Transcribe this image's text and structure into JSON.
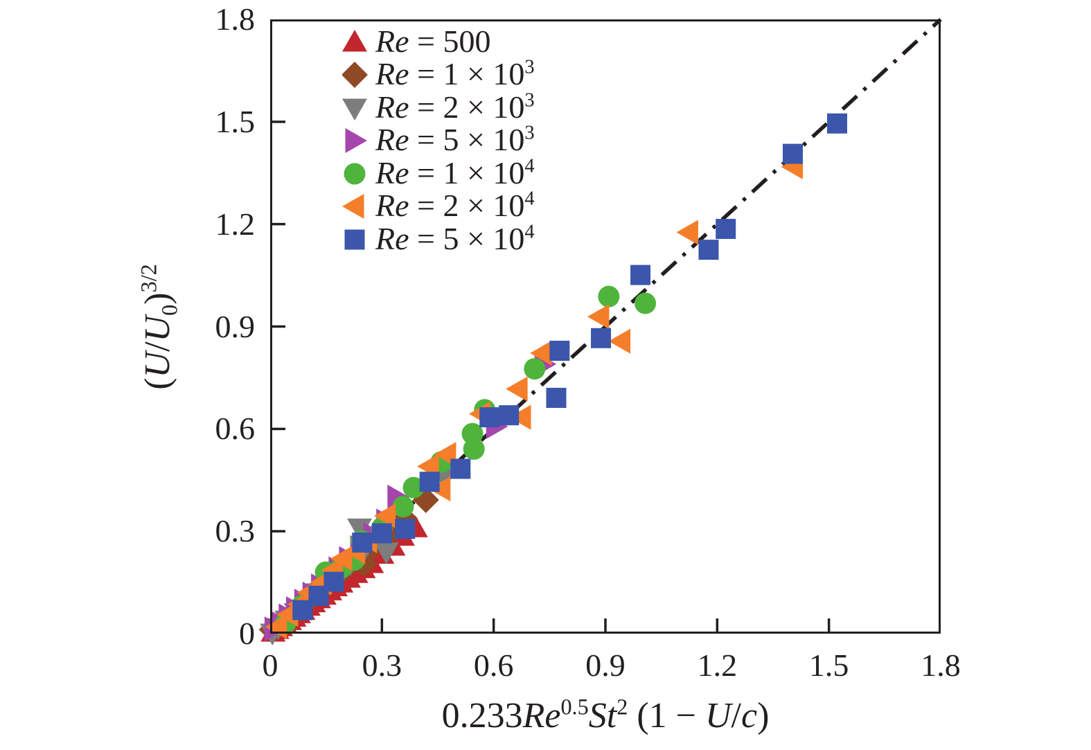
{
  "figure": {
    "background": "#ffffff",
    "frame_color": "#231f20"
  },
  "chart_data": {
    "type": "scatter",
    "title": "",
    "xlim": [
      0,
      1.8
    ],
    "ylim": [
      0,
      1.8
    ],
    "grid": false,
    "legend_position": "top-left-inside",
    "x_ticks": [
      0,
      0.3,
      0.6,
      0.9,
      1.2,
      1.5,
      1.8
    ],
    "x_tick_labels": [
      "0",
      "0.3",
      "0.6",
      "0.9",
      "1.2",
      "1.5",
      "1.8"
    ],
    "y_ticks": [
      0,
      0.3,
      0.6,
      0.9,
      1.2,
      1.5,
      1.8
    ],
    "y_tick_labels": [
      "0",
      "0.3",
      "0.6",
      "0.9",
      "1.2",
      "1.5",
      "1.8"
    ],
    "xlabel_segments": [
      {
        "t": "0.233"
      },
      {
        "t": "Re",
        "i": true
      },
      {
        "t": "0.5",
        "sup": true
      },
      {
        "t": "St",
        "i": true
      },
      {
        "t": "2",
        "sup": true
      },
      {
        "t": " (1 − "
      },
      {
        "t": "U",
        "i": true
      },
      {
        "t": "/"
      },
      {
        "t": "c",
        "i": true
      },
      {
        "t": ")"
      }
    ],
    "ylabel_segments": [
      {
        "t": "("
      },
      {
        "t": "U",
        "i": true
      },
      {
        "t": "/"
      },
      {
        "t": "U",
        "i": true
      },
      {
        "t": "0",
        "sub": true
      },
      {
        "t": ")"
      },
      {
        "t": "3/2",
        "sup": true
      }
    ],
    "reference_line": {
      "type": "identity",
      "style": "dash-dot",
      "from": [
        0,
        0
      ],
      "to": [
        1.8,
        1.8
      ],
      "color": "#231f20"
    },
    "series": [
      {
        "label": "Re = 500",
        "marker": "triangle-up",
        "color": "#c1272d",
        "points": [
          [
            0.008,
            0.004
          ],
          [
            0.018,
            0.012
          ],
          [
            0.028,
            0.02
          ],
          [
            0.04,
            0.028
          ],
          [
            0.052,
            0.038
          ],
          [
            0.064,
            0.048
          ],
          [
            0.076,
            0.058
          ],
          [
            0.088,
            0.068
          ],
          [
            0.102,
            0.08
          ],
          [
            0.116,
            0.09
          ],
          [
            0.13,
            0.102
          ],
          [
            0.145,
            0.112
          ],
          [
            0.16,
            0.125
          ],
          [
            0.175,
            0.137
          ],
          [
            0.19,
            0.148
          ],
          [
            0.21,
            0.162
          ],
          [
            0.23,
            0.176
          ],
          [
            0.25,
            0.19
          ],
          [
            0.272,
            0.205
          ],
          [
            0.3,
            0.232
          ],
          [
            0.33,
            0.256
          ],
          [
            0.355,
            0.285
          ],
          [
            0.39,
            0.31
          ]
        ]
      },
      {
        "label": "Re = 1 × 10^3",
        "marker": "diamond",
        "color": "#8e4a25",
        "points": [
          [
            0.005,
            0.012
          ],
          [
            0.02,
            0.022
          ],
          [
            0.036,
            0.036
          ],
          [
            0.052,
            0.05
          ],
          [
            0.07,
            0.066
          ],
          [
            0.09,
            0.086
          ],
          [
            0.11,
            0.105
          ],
          [
            0.132,
            0.126
          ],
          [
            0.155,
            0.146
          ],
          [
            0.178,
            0.168
          ],
          [
            0.2,
            0.19
          ],
          [
            0.225,
            0.212
          ],
          [
            0.252,
            0.205
          ],
          [
            0.276,
            0.256
          ],
          [
            0.3,
            0.276
          ],
          [
            0.335,
            0.306
          ],
          [
            0.362,
            0.336
          ],
          [
            0.418,
            0.392
          ]
        ]
      },
      {
        "label": "Re = 2 × 10^3",
        "marker": "triangle-down",
        "color": "#7d7d7d",
        "points": [
          [
            0.006,
            0.002
          ],
          [
            0.022,
            0.018
          ],
          [
            0.045,
            0.04
          ],
          [
            0.07,
            0.062
          ],
          [
            0.1,
            0.09
          ],
          [
            0.13,
            0.12
          ],
          [
            0.16,
            0.148
          ],
          [
            0.19,
            0.178
          ],
          [
            0.215,
            0.205
          ],
          [
            0.24,
            0.31
          ],
          [
            0.252,
            0.247
          ],
          [
            0.312,
            0.24
          ],
          [
            0.468,
            0.458
          ]
        ]
      },
      {
        "label": "Re = 5 × 10^3",
        "marker": "triangle-right",
        "color": "#a546ad",
        "points": [
          [
            0.01,
            0.014
          ],
          [
            0.028,
            0.03
          ],
          [
            0.048,
            0.052
          ],
          [
            0.068,
            0.073
          ],
          [
            0.09,
            0.095
          ],
          [
            0.112,
            0.116
          ],
          [
            0.135,
            0.14
          ],
          [
            0.158,
            0.166
          ],
          [
            0.182,
            0.19
          ],
          [
            0.21,
            0.22
          ],
          [
            0.24,
            0.252
          ],
          [
            0.275,
            0.29
          ],
          [
            0.31,
            0.33
          ],
          [
            0.34,
            0.4
          ],
          [
            0.605,
            0.607
          ],
          [
            0.617,
            0.634
          ],
          [
            0.735,
            0.79
          ]
        ]
      },
      {
        "label": "Re = 1 × 10^4",
        "marker": "circle",
        "color": "#4eb43b",
        "points": [
          [
            0.041,
            0.03
          ],
          [
            0.085,
            0.082
          ],
          [
            0.149,
            0.18
          ],
          [
            0.19,
            0.192
          ],
          [
            0.226,
            0.216
          ],
          [
            0.245,
            0.272
          ],
          [
            0.3,
            0.31
          ],
          [
            0.357,
            0.372
          ],
          [
            0.385,
            0.428
          ],
          [
            0.459,
            0.503
          ],
          [
            0.543,
            0.586
          ],
          [
            0.547,
            0.541
          ],
          [
            0.576,
            0.656
          ],
          [
            0.71,
            0.776
          ],
          [
            0.909,
            0.988
          ],
          [
            1.007,
            0.968
          ]
        ]
      },
      {
        "label": "Re = 2 × 10^4",
        "marker": "triangle-left",
        "color": "#f57e2a",
        "points": [
          [
            0.02,
            0.02
          ],
          [
            0.05,
            0.056
          ],
          [
            0.08,
            0.086
          ],
          [
            0.105,
            0.12
          ],
          [
            0.14,
            0.15
          ],
          [
            0.17,
            0.186
          ],
          [
            0.195,
            0.22
          ],
          [
            0.23,
            0.24
          ],
          [
            0.262,
            0.272
          ],
          [
            0.312,
            0.345
          ],
          [
            0.428,
            0.49
          ],
          [
            0.459,
            0.424
          ],
          [
            0.474,
            0.525
          ],
          [
            0.567,
            0.644
          ],
          [
            0.666,
            0.717
          ],
          [
            0.675,
            0.634
          ],
          [
            0.731,
            0.822
          ],
          [
            0.885,
            0.929
          ],
          [
            0.942,
            0.857
          ],
          [
            1.124,
            1.176
          ],
          [
            1.405,
            1.368
          ]
        ]
      },
      {
        "label": "Re = 5 × 10^4",
        "marker": "square",
        "color": "#3b56ab",
        "points": [
          [
            0.087,
            0.069
          ],
          [
            0.13,
            0.111
          ],
          [
            0.171,
            0.152
          ],
          [
            0.247,
            0.267
          ],
          [
            0.3,
            0.294
          ],
          [
            0.362,
            0.307
          ],
          [
            0.428,
            0.445
          ],
          [
            0.511,
            0.483
          ],
          [
            0.589,
            0.634
          ],
          [
            0.641,
            0.64
          ],
          [
            0.768,
            0.691
          ],
          [
            0.777,
            0.829
          ],
          [
            0.888,
            0.866
          ],
          [
            0.994,
            1.051
          ],
          [
            1.177,
            1.125
          ],
          [
            1.223,
            1.186
          ],
          [
            1.403,
            1.406
          ],
          [
            1.522,
            1.495
          ]
        ]
      }
    ]
  }
}
